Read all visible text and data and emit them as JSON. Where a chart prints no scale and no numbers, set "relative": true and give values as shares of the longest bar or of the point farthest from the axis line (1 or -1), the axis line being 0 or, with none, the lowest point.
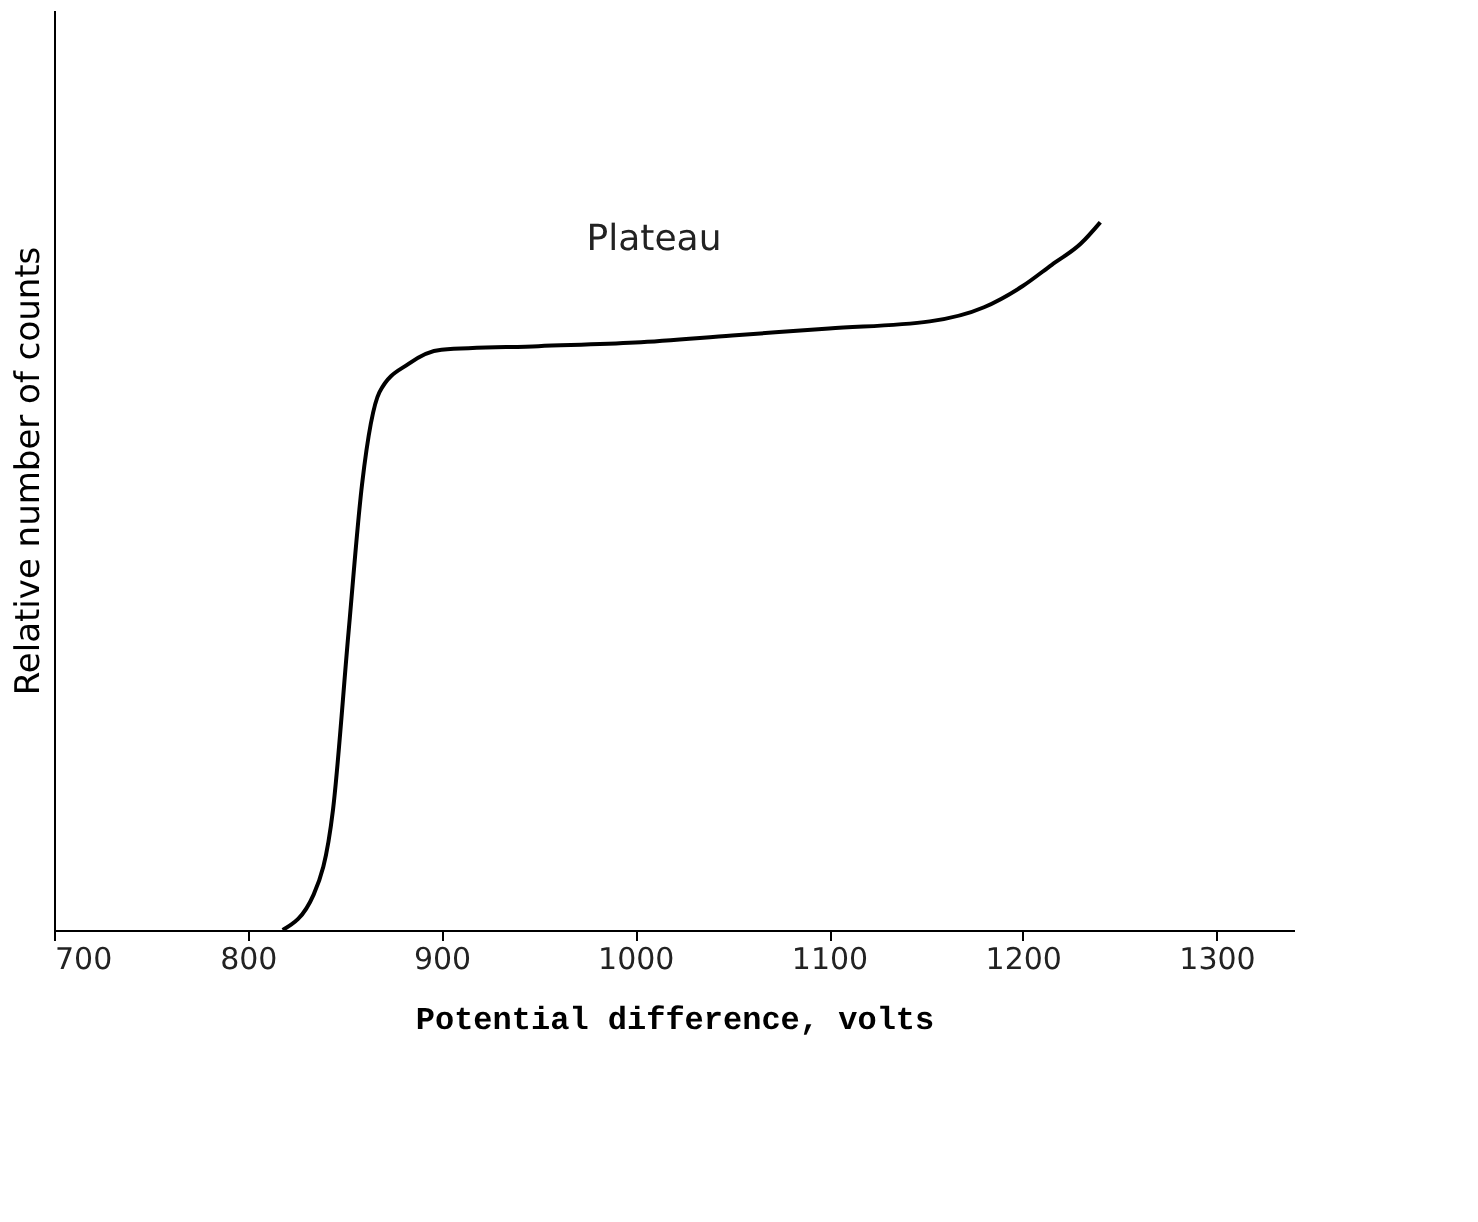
{
  "chart_data": {
    "type": "line",
    "relative": true,
    "xlabel": "Potential difference, volts",
    "ylabel": "Relative number of counts",
    "x": [
      818,
      834,
      844,
      852,
      859,
      868,
      883,
      900,
      950,
      1000,
      1050,
      1100,
      1152,
      1180,
      1200,
      1215,
      1230,
      1240
    ],
    "series": [
      {
        "color": "#000000",
        "values": [
          0,
          0.05,
          0.17,
          0.42,
          0.63,
          0.76,
          0.8,
          0.82,
          0.825,
          0.83,
          0.84,
          0.85,
          0.86,
          0.88,
          0.91,
          0.94,
          0.97,
          1.0
        ]
      }
    ],
    "xlim": [
      700,
      1340
    ],
    "xticks": [
      700,
      800,
      900,
      1000,
      1100,
      1200,
      1300
    ],
    "annotations": [
      "Plateau"
    ],
    "grid": false,
    "marker": "none",
    "line_style": "solid"
  }
}
